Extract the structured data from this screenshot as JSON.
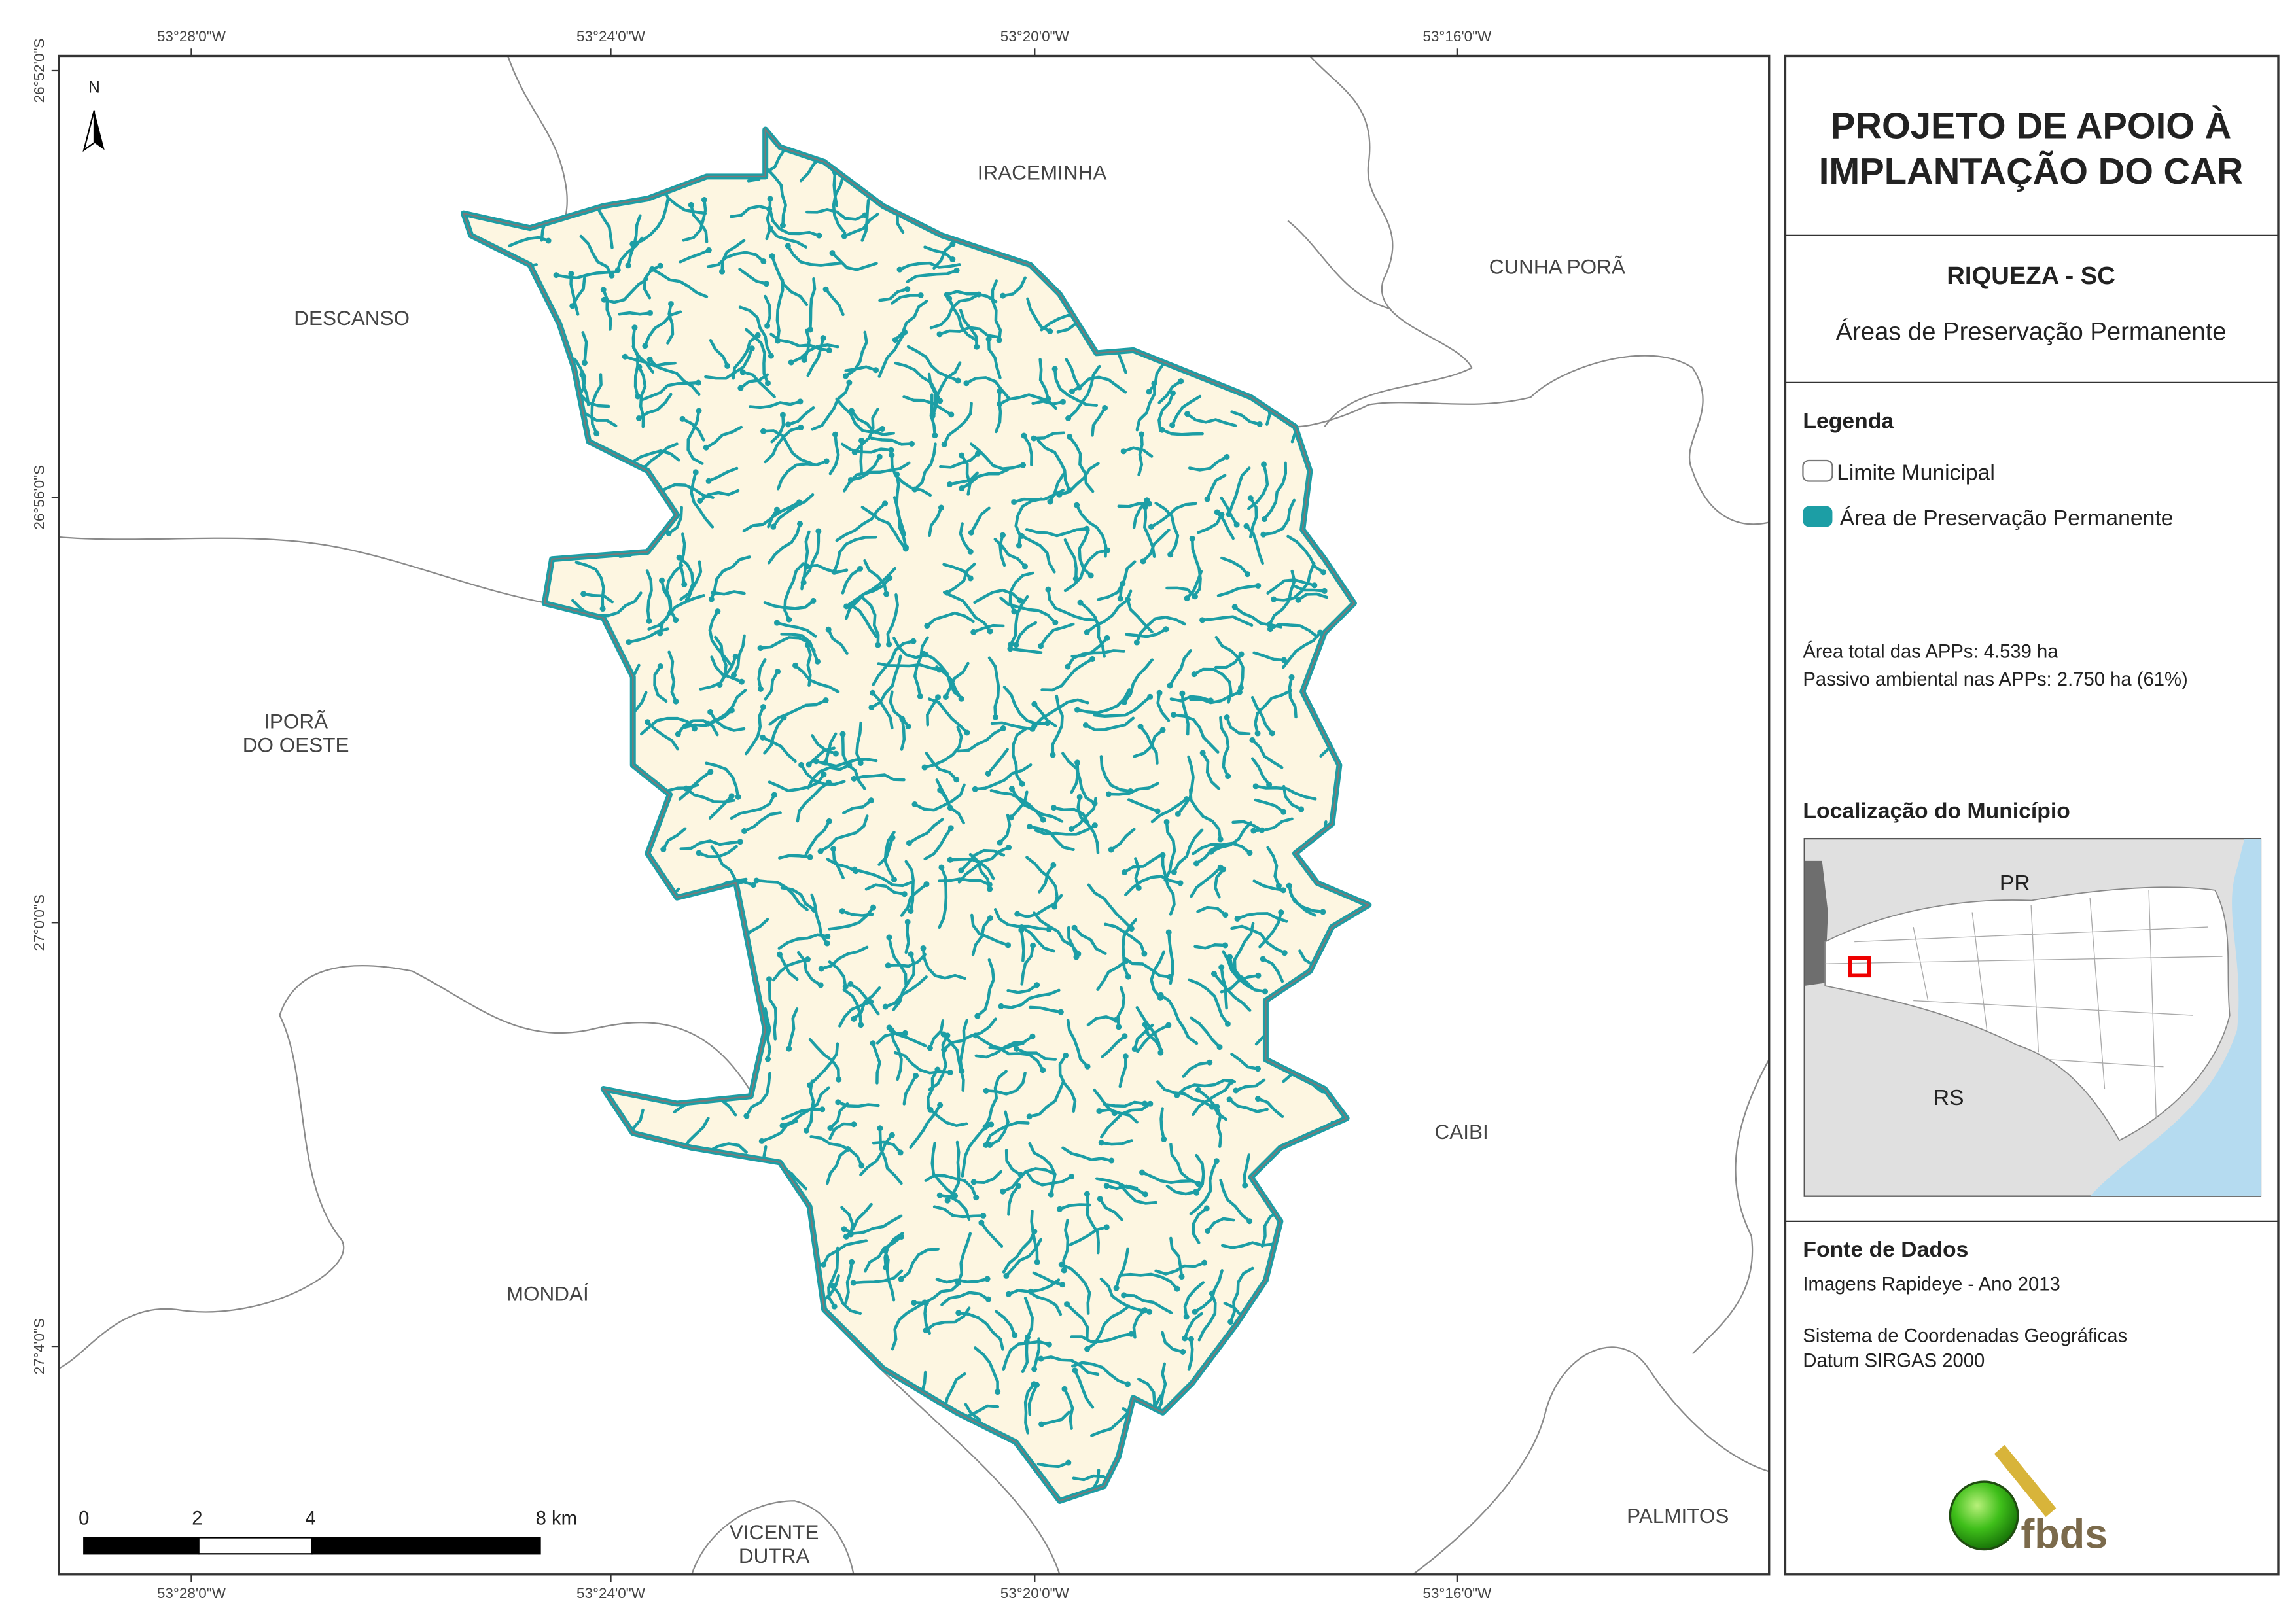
{
  "header": {
    "title": [
      "PROJETO DE APOIO À",
      "IMPLANTAÇÃO DO CAR"
    ],
    "municipality": "RIQUEZA - SC",
    "subtitle": "Áreas de Preservação Permanente"
  },
  "legend": {
    "title": "Legenda",
    "items": [
      "Limite Municipal",
      "Área de Preservação Permanente"
    ]
  },
  "stats": [
    "Área total das APPs: 4.539 ha",
    "Passivo ambiental nas APPs: 2.750 ha (61%)"
  ],
  "location": {
    "title": "Localização do Município",
    "labels": [
      "PR",
      "RS"
    ]
  },
  "sources": {
    "title": "Fonte de Dados",
    "lines": [
      "Imagens Rapideye - Ano 2013",
      "Sistema de Coordenadas Geográficas",
      "Datum SIRGAS 2000"
    ]
  },
  "logo": "fbds",
  "map": {
    "north": "N",
    "neighbors": [
      [
        "IRACEMINHA"
      ],
      [
        "CUNHA PORÃ"
      ],
      [
        "DESCANSO"
      ],
      [
        "IPORÃ",
        "DO OESTE"
      ],
      [
        "CAIBI"
      ],
      [
        "MONDAÍ"
      ],
      [
        "VICENTE",
        "DUTRA"
      ],
      [
        "PALMITOS"
      ]
    ],
    "coords": {
      "top": [
        "53°28'0\"W",
        "53°24'0\"W",
        "53°20'0\"W",
        "53°16'0\"W"
      ],
      "bottom": [
        "53°28'0\"W",
        "53°24'0\"W",
        "53°20'0\"W",
        "53°16'0\"W"
      ],
      "left": [
        "26°52'0\"S",
        "26°56'0\"S",
        "27°0'0\"S",
        "27°4'0\"S"
      ]
    },
    "scale": [
      "0",
      "2",
      "4",
      "8 km"
    ]
  }
}
